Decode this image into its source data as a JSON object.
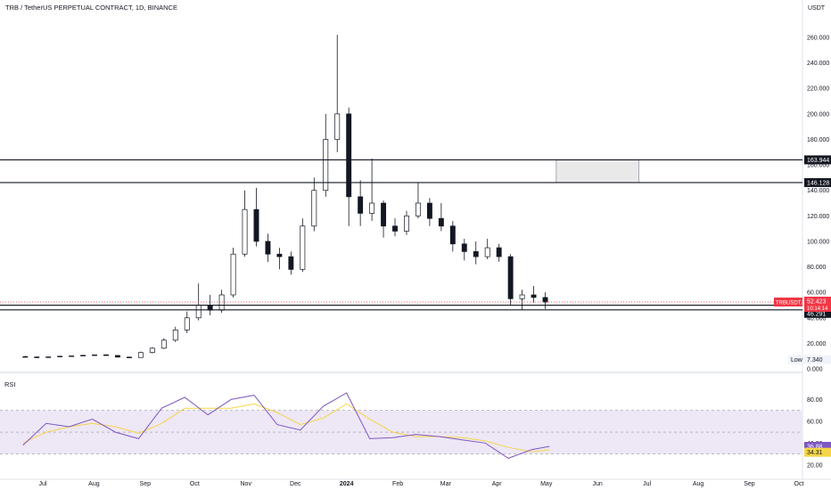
{
  "header": {
    "title": "TRB / TetherUS PERPETUAL CONTRACT, 1D, BINANCE",
    "currency": "USDT"
  },
  "rsi_panel": {
    "label": "RSI"
  },
  "colors": {
    "up": "#26a69a",
    "down": "#ef5350",
    "candle": "#131722",
    "rsi": "#7e57c2",
    "rsi_ma": "#f5d544",
    "band_fill": "#ede7f6",
    "price_badge": "#f23645",
    "level_badge": "#131722",
    "box_fill": "#e9e9ea"
  },
  "chart_data": [
    {
      "type": "candlestick",
      "symbol": "TRBUSDT.P",
      "title": "TRB / TetherUS PERPETUAL CONTRACT, 1D, BINANCE",
      "ylim": [
        0,
        300
      ],
      "y_ticks": [
        0,
        20,
        40,
        60,
        80,
        100,
        120,
        140,
        160,
        180,
        200,
        220,
        240,
        260
      ],
      "y_tick_labels": [
        "0.000",
        "20.000",
        "40.000",
        "60.000",
        "80.000",
        "100.000",
        "120.000",
        "140.000",
        "160.000",
        "180.000",
        "200.000",
        "220.000",
        "240.000",
        "260.000"
      ],
      "x_tick_labels": [
        "Jul",
        "Aug",
        "Sep",
        "Oct",
        "Nov",
        "Dec",
        "2024",
        "Feb",
        "Mar",
        "Apr",
        "May",
        "Jun",
        "Jul",
        "Aug",
        "Sep",
        "Oct"
      ],
      "last_price": {
        "value": 52.423,
        "label": "52.423",
        "symbol_label": "TRBUSDT.P",
        "countdown": "10:14:14"
      },
      "horizontal_levels": [
        {
          "value": 163.944,
          "label": "163.944"
        },
        {
          "value": 146.128,
          "label": "146.128"
        },
        {
          "value": 49.961,
          "label": "49.961"
        },
        {
          "value": 46.291,
          "label": "46.291"
        }
      ],
      "low_marker": {
        "label": "Low",
        "value": 7.34,
        "value_label": "7.340"
      },
      "zone_box": {
        "start": "2024-05-07",
        "end": "2024-06-26",
        "top": 163.944,
        "bottom": 146.128
      },
      "ohlc_weekly": [
        [
          "2023-06-19",
          9.6,
          10.2,
          8.9,
          9.3
        ],
        [
          "2023-06-26",
          9.3,
          9.8,
          8.6,
          9.0
        ],
        [
          "2023-07-03",
          9.0,
          9.7,
          8.7,
          9.4
        ],
        [
          "2023-07-10",
          9.4,
          10.3,
          9.0,
          9.9
        ],
        [
          "2023-07-17",
          9.9,
          10.6,
          9.5,
          10.2
        ],
        [
          "2023-07-24",
          10.2,
          11.0,
          9.8,
          10.6
        ],
        [
          "2023-07-31",
          10.6,
          11.4,
          10.0,
          11.0
        ],
        [
          "2023-08-07",
          11.0,
          11.5,
          10.2,
          10.5
        ],
        [
          "2023-08-14",
          10.5,
          10.8,
          8.8,
          9.2
        ],
        [
          "2023-08-21",
          9.2,
          9.6,
          8.5,
          8.9
        ],
        [
          "2023-08-28",
          8.9,
          13.5,
          8.7,
          12.8
        ],
        [
          "2023-09-04",
          12.8,
          17.0,
          12.0,
          16.2
        ],
        [
          "2023-09-11",
          16.2,
          24.0,
          15.5,
          22.5
        ],
        [
          "2023-09-18",
          22.5,
          33.0,
          21.0,
          30.5
        ],
        [
          "2023-09-25",
          30.5,
          45.0,
          28.0,
          40.0
        ],
        [
          "2023-10-02",
          40.0,
          67.0,
          38.0,
          50.0
        ],
        [
          "2023-10-09",
          50.0,
          58.0,
          42.0,
          46.0
        ],
        [
          "2023-10-16",
          46.0,
          62.0,
          44.0,
          58.0
        ],
        [
          "2023-10-23",
          58.0,
          95.0,
          56.0,
          90.0
        ],
        [
          "2023-10-30",
          90.0,
          140.0,
          88.0,
          125.0
        ],
        [
          "2023-11-06",
          125.0,
          142.0,
          96.0,
          100.0
        ],
        [
          "2023-11-13",
          100.0,
          106.0,
          84.0,
          90.0
        ],
        [
          "2023-11-20",
          90.0,
          95.0,
          78.0,
          88.0
        ],
        [
          "2023-11-27",
          88.0,
          92.0,
          74.0,
          78.0
        ],
        [
          "2023-12-04",
          78.0,
          118.0,
          76.0,
          112.0
        ],
        [
          "2023-12-11",
          112.0,
          150.0,
          108.0,
          140.0
        ],
        [
          "2023-12-18",
          140.0,
          200.0,
          135.0,
          180.0
        ],
        [
          "2023-12-25",
          180.0,
          262.0,
          170.0,
          200.0
        ],
        [
          "2024-01-01",
          200.0,
          205.0,
          112.0,
          135.0
        ],
        [
          "2024-01-08",
          135.0,
          148.0,
          112.0,
          122.0
        ],
        [
          "2024-01-15",
          122.0,
          165.0,
          116.0,
          130.0
        ],
        [
          "2024-01-22",
          130.0,
          132.0,
          103.0,
          112.0
        ],
        [
          "2024-01-29",
          112.0,
          118.0,
          104.0,
          108.0
        ],
        [
          "2024-02-05",
          108.0,
          124.0,
          105.0,
          120.0
        ],
        [
          "2024-02-12",
          120.0,
          146.0,
          118.0,
          130.0
        ],
        [
          "2024-02-19",
          130.0,
          134.0,
          112.0,
          118.0
        ],
        [
          "2024-02-26",
          118.0,
          130.0,
          108.0,
          112.0
        ],
        [
          "2024-03-04",
          112.0,
          116.0,
          92.0,
          98.0
        ],
        [
          "2024-03-11",
          98.0,
          102.0,
          85.0,
          92.0
        ],
        [
          "2024-03-18",
          92.0,
          100.0,
          82.0,
          88.0
        ],
        [
          "2024-03-25",
          88.0,
          102.0,
          86.0,
          95.0
        ],
        [
          "2024-04-01",
          95.0,
          98.0,
          84.0,
          88.0
        ],
        [
          "2024-04-08",
          88.0,
          90.0,
          50.0,
          55.0
        ],
        [
          "2024-04-15",
          55.0,
          62.0,
          46.0,
          58.0
        ],
        [
          "2024-04-22",
          58.0,
          65.0,
          52.0,
          56.0
        ],
        [
          "2024-04-29",
          56.0,
          60.0,
          47.0,
          52.4
        ]
      ]
    },
    {
      "type": "line",
      "name": "RSI",
      "ylim": [
        10,
        100
      ],
      "y_ticks": [
        20,
        40,
        60,
        80
      ],
      "y_tick_labels": [
        "20.00",
        "40.00",
        "60.00",
        "80.00"
      ],
      "bands": {
        "upper": 70,
        "middle": 50,
        "lower": 30
      },
      "labels": {
        "rsi": "36.88",
        "rsi_ma": "34.31"
      },
      "series": [
        {
          "key": "rsi",
          "x": [
            "2023-06-19",
            "2023-07-03",
            "2023-07-17",
            "2023-07-31",
            "2023-08-14",
            "2023-08-28",
            "2023-09-11",
            "2023-09-25",
            "2023-10-09",
            "2023-10-23",
            "2023-11-06",
            "2023-11-20",
            "2023-12-04",
            "2023-12-18",
            "2024-01-01",
            "2024-01-15",
            "2024-01-29",
            "2024-02-12",
            "2024-02-26",
            "2024-03-11",
            "2024-03-25",
            "2024-04-08",
            "2024-04-22",
            "2024-05-03"
          ],
          "values": [
            38,
            58,
            55,
            62,
            50,
            44,
            72,
            82,
            66,
            80,
            84,
            57,
            52,
            74,
            86,
            44,
            45,
            48,
            46,
            43,
            40,
            26,
            34,
            37
          ]
        },
        {
          "key": "rsi_ma",
          "x": [
            "2023-06-19",
            "2023-07-03",
            "2023-07-17",
            "2023-07-31",
            "2023-08-14",
            "2023-08-28",
            "2023-09-11",
            "2023-09-25",
            "2023-10-09",
            "2023-10-23",
            "2023-11-06",
            "2023-11-20",
            "2023-12-04",
            "2023-12-18",
            "2024-01-01",
            "2024-01-15",
            "2024-01-29",
            "2024-02-12",
            "2024-02-26",
            "2024-03-11",
            "2024-03-25",
            "2024-04-08",
            "2024-04-22",
            "2024-05-03"
          ],
          "values": [
            40,
            50,
            55,
            58,
            55,
            49,
            58,
            72,
            72,
            72,
            76,
            68,
            57,
            63,
            76,
            62,
            50,
            46,
            46,
            45,
            42,
            36,
            32,
            34
          ]
        }
      ]
    }
  ]
}
